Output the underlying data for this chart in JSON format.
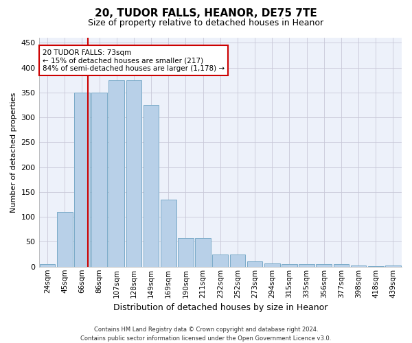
{
  "title1": "20, TUDOR FALLS, HEANOR, DE75 7TE",
  "title2": "Size of property relative to detached houses in Heanor",
  "xlabel": "Distribution of detached houses by size in Heanor",
  "ylabel": "Number of detached properties",
  "footer1": "Contains HM Land Registry data © Crown copyright and database right 2024.",
  "footer2": "Contains public sector information licensed under the Open Government Licence v3.0.",
  "annotation_line1": "20 TUDOR FALLS: 73sqm",
  "annotation_line2": "← 15% of detached houses are smaller (217)",
  "annotation_line3": "84% of semi-detached houses are larger (1,178) →",
  "bar_color": "#b8d0e8",
  "bar_edge_color": "#7aaac8",
  "red_line_color": "#cc0000",
  "background_color": "#edf1fa",
  "grid_color": "#c8c8d8",
  "categories": [
    "24sqm",
    "45sqm",
    "66sqm",
    "86sqm",
    "107sqm",
    "128sqm",
    "149sqm",
    "169sqm",
    "190sqm",
    "211sqm",
    "232sqm",
    "252sqm",
    "273sqm",
    "294sqm",
    "315sqm",
    "335sqm",
    "356sqm",
    "377sqm",
    "398sqm",
    "418sqm",
    "439sqm"
  ],
  "values": [
    5,
    110,
    350,
    350,
    375,
    375,
    325,
    135,
    57,
    57,
    25,
    25,
    11,
    6,
    5,
    5,
    5,
    5,
    3,
    1,
    3
  ],
  "red_line_x": 2.32,
  "ylim": [
    0,
    460
  ],
  "yticks": [
    0,
    50,
    100,
    150,
    200,
    250,
    300,
    350,
    400,
    450
  ],
  "title1_fontsize": 11,
  "title2_fontsize": 9,
  "ylabel_fontsize": 8,
  "xlabel_fontsize": 9,
  "tick_fontsize": 7.5,
  "ytick_fontsize": 8,
  "footer_fontsize": 6,
  "ann_fontsize": 7.5
}
